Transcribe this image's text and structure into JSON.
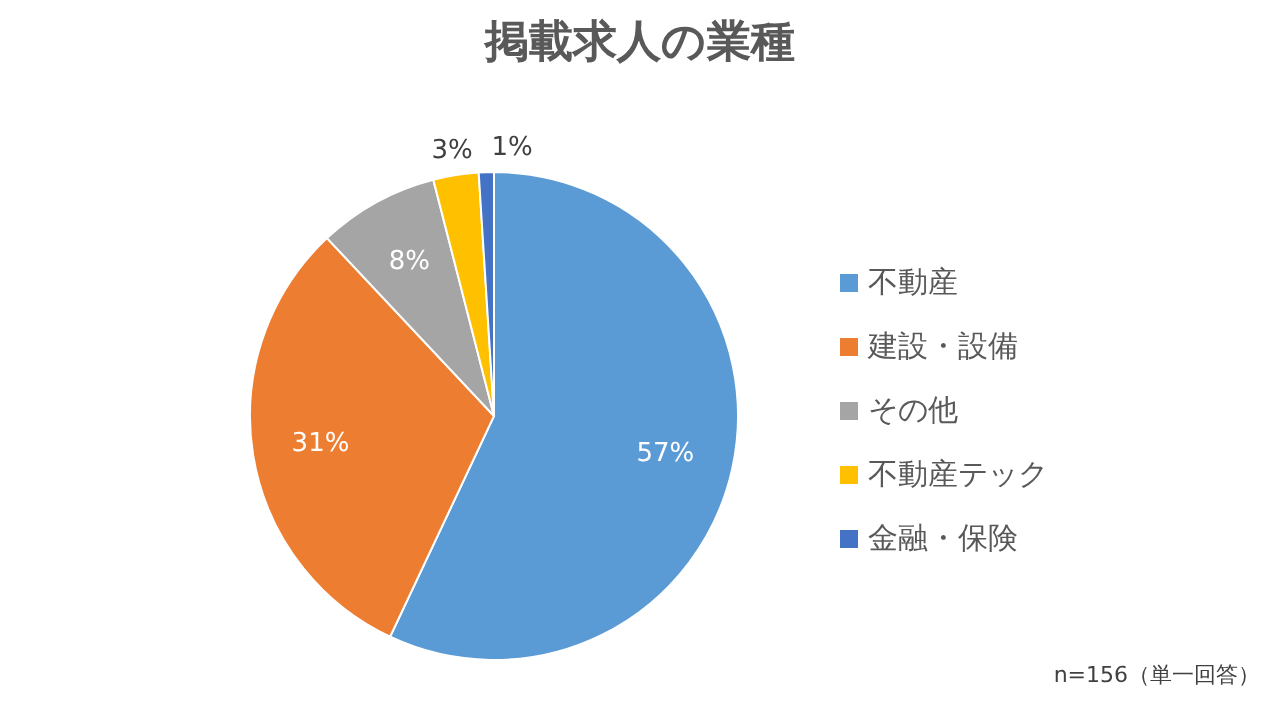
{
  "chart_data": {
    "type": "pie",
    "title": "掲載求人の業種",
    "categories": [
      "不動産",
      "建設・設備",
      "その他",
      "不動産テック",
      "金融・保険"
    ],
    "values": [
      57,
      31,
      8,
      3,
      1
    ],
    "colors": [
      "#5b9bd5",
      "#ed7d31",
      "#a5a5a5",
      "#ffc000",
      "#4472c4"
    ],
    "value_labels": [
      "57%",
      "31%",
      "8%",
      "3%",
      "1%"
    ],
    "legend": "right",
    "annotations": [
      "n=156（単一回答）"
    ]
  }
}
